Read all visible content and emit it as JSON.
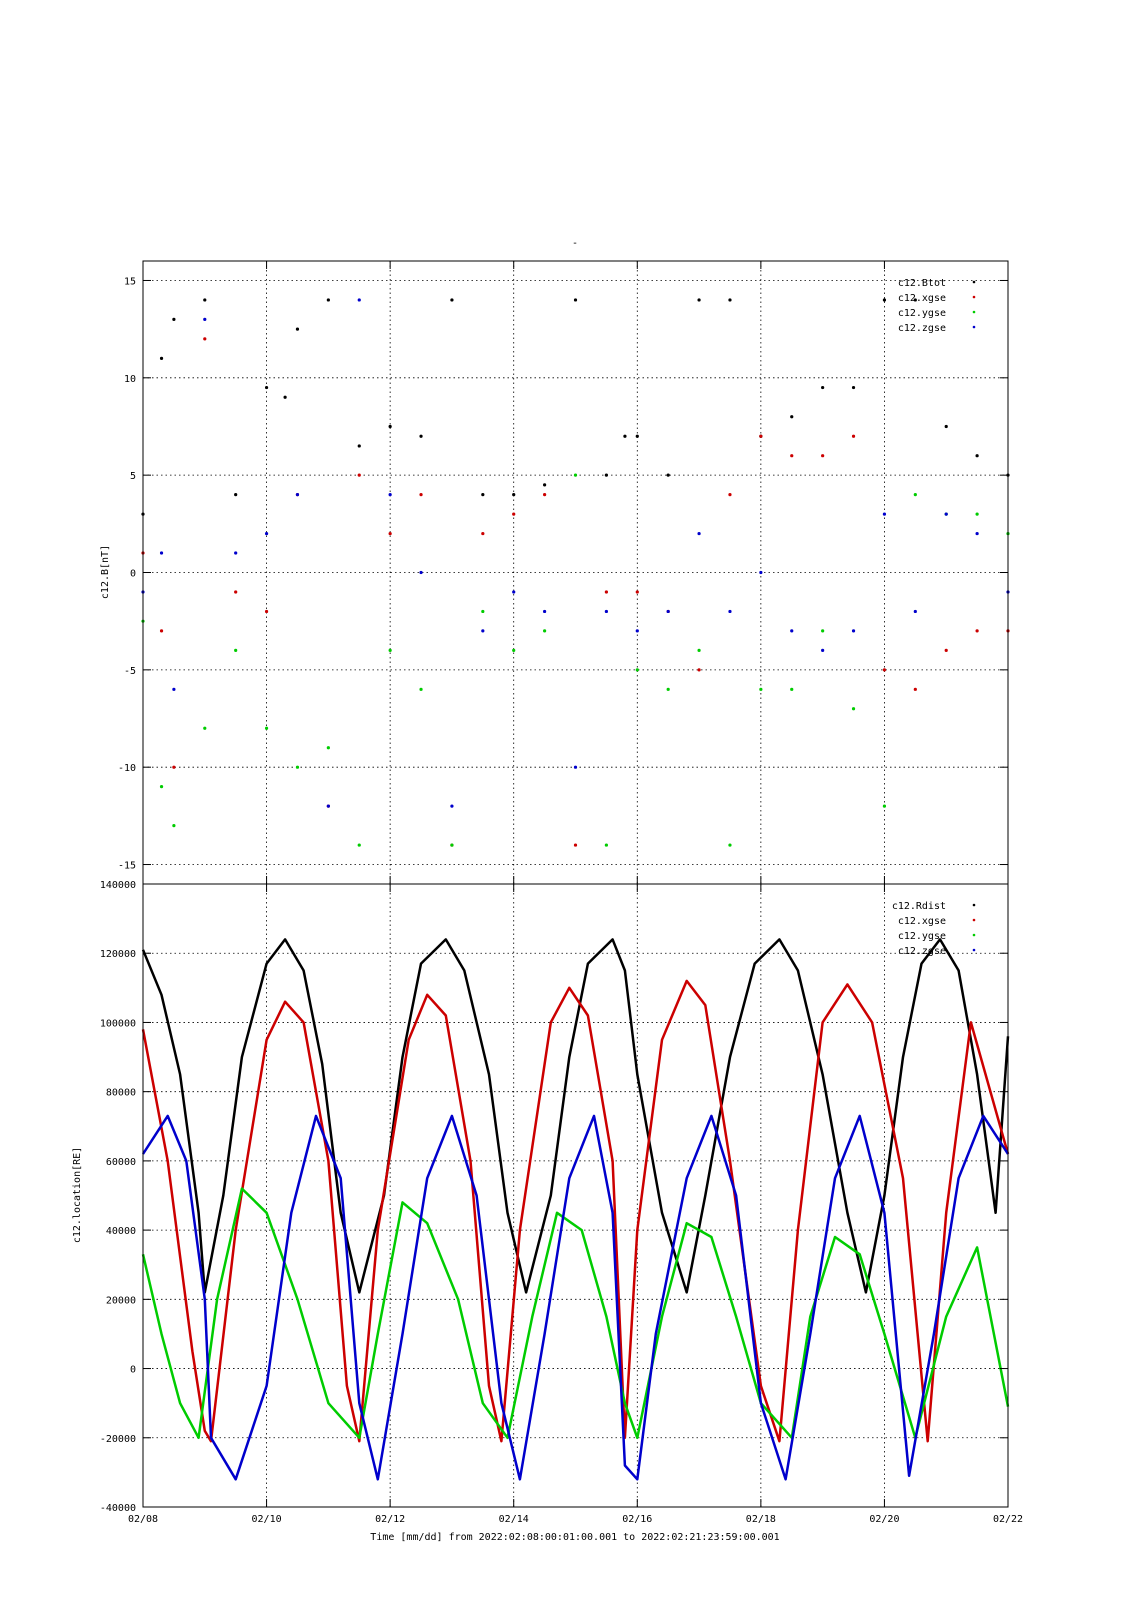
{
  "page_title": "-",
  "xaxis": {
    "label": "Time [mm/dd]  from 2022:02:08:00:01:00.001  to  2022:02:21:23:59:00.001",
    "ticks": [
      "02/08",
      "02/10",
      "02/12",
      "02/14",
      "02/16",
      "02/18",
      "02/20",
      "02/22"
    ],
    "range_days": [
      0,
      14
    ]
  },
  "chart_data": [
    {
      "type": "scatter",
      "ylabel": "c12.B[nT]",
      "ylim": [
        -16,
        16
      ],
      "yticks": [
        -15,
        -10,
        -5,
        0,
        5,
        10,
        15
      ],
      "grid": true,
      "legend_placement": "top-right",
      "series": [
        {
          "name": "c12.Btot",
          "color": "#000000",
          "x": [
            0.0,
            0.3,
            0.5,
            1.0,
            1.5,
            2.0,
            2.3,
            2.5,
            3.0,
            3.5,
            4.0,
            4.5,
            5.0,
            5.5,
            6.0,
            6.5,
            7.0,
            7.5,
            7.8,
            8.0,
            8.5,
            9.0,
            9.5,
            10.0,
            10.5,
            11.0,
            11.5,
            12.0,
            12.5,
            13.0,
            13.5,
            14.0
          ],
          "y": [
            3.0,
            11.0,
            13.0,
            14.0,
            4.0,
            9.5,
            9.0,
            12.5,
            14.0,
            6.5,
            7.5,
            7.0,
            14.0,
            4.0,
            4.0,
            4.5,
            14.0,
            5.0,
            7.0,
            7.0,
            5.0,
            14.0,
            14.0,
            7.0,
            8.0,
            9.5,
            9.5,
            14.0,
            14.0,
            7.5,
            6.0,
            5.0
          ]
        },
        {
          "name": "c12.xgse",
          "color": "#cc0000",
          "x": [
            0.0,
            0.3,
            0.5,
            1.0,
            1.5,
            2.0,
            2.5,
            3.0,
            3.5,
            4.0,
            4.5,
            5.0,
            5.5,
            6.0,
            6.5,
            7.0,
            7.5,
            8.0,
            8.5,
            9.0,
            9.5,
            10.0,
            10.5,
            11.0,
            11.5,
            12.0,
            12.5,
            13.0,
            13.5,
            14.0
          ],
          "y": [
            1.0,
            -3.0,
            -10.0,
            12.0,
            -1.0,
            -2.0,
            4.0,
            -12.0,
            5.0,
            2.0,
            4.0,
            -14.0,
            2.0,
            3.0,
            4.0,
            -14.0,
            -1.0,
            -1.0,
            -2.0,
            -5.0,
            4.0,
            7.0,
            6.0,
            6.0,
            7.0,
            -5.0,
            -6.0,
            -4.0,
            -3.0,
            -3.0
          ]
        },
        {
          "name": "c12.ygse",
          "color": "#00cc00",
          "x": [
            0.0,
            0.3,
            0.5,
            1.0,
            1.5,
            2.0,
            2.5,
            3.0,
            3.5,
            4.0,
            4.5,
            5.0,
            5.5,
            6.0,
            6.5,
            7.0,
            7.5,
            8.0,
            8.5,
            9.0,
            9.5,
            10.0,
            10.5,
            11.0,
            11.5,
            12.0,
            12.5,
            13.0,
            13.5,
            14.0
          ],
          "y": [
            -2.5,
            -11.0,
            -13.0,
            -8.0,
            -4.0,
            -8.0,
            -10.0,
            -9.0,
            -14.0,
            -4.0,
            -6.0,
            -14.0,
            -2.0,
            -4.0,
            -3.0,
            5.0,
            -14.0,
            -5.0,
            -6.0,
            -4.0,
            -14.0,
            -6.0,
            -6.0,
            -3.0,
            -7.0,
            -12.0,
            4.0,
            3.0,
            3.0,
            2.0
          ]
        },
        {
          "name": "c12.zgse",
          "color": "#0000cc",
          "x": [
            0.0,
            0.3,
            0.5,
            1.0,
            1.5,
            2.0,
            2.5,
            3.0,
            3.5,
            4.0,
            4.5,
            5.0,
            5.5,
            6.0,
            6.5,
            7.0,
            7.5,
            8.0,
            8.5,
            9.0,
            9.5,
            10.0,
            10.5,
            11.0,
            11.5,
            12.0,
            12.5,
            13.0,
            13.5,
            14.0
          ],
          "y": [
            -1.0,
            1.0,
            -6.0,
            13.0,
            1.0,
            2.0,
            4.0,
            -12.0,
            14.0,
            4.0,
            0.0,
            -12.0,
            -3.0,
            -1.0,
            -2.0,
            -10.0,
            -2.0,
            -3.0,
            -2.0,
            2.0,
            -2.0,
            0.0,
            -3.0,
            -4.0,
            -3.0,
            3.0,
            -2.0,
            3.0,
            2.0,
            -1.0
          ]
        }
      ]
    },
    {
      "type": "line",
      "ylabel": "c12.location[RE]",
      "ylim": [
        -40000,
        140000
      ],
      "yticks": [
        -40000,
        -20000,
        0,
        20000,
        40000,
        60000,
        80000,
        100000,
        120000,
        140000
      ],
      "grid": true,
      "legend_placement": "top-right",
      "series": [
        {
          "name": "c12.Rdist",
          "color": "#000000",
          "x": [
            0.0,
            0.3,
            0.6,
            0.9,
            1.0,
            1.3,
            1.6,
            2.0,
            2.3,
            2.6,
            2.9,
            3.2,
            3.5,
            3.9,
            4.2,
            4.5,
            4.9,
            5.2,
            5.6,
            5.9,
            6.2,
            6.6,
            6.9,
            7.2,
            7.6,
            7.8,
            8.0,
            8.4,
            8.8,
            9.1,
            9.5,
            9.9,
            10.3,
            10.6,
            11.0,
            11.4,
            11.7,
            12.0,
            12.3,
            12.6,
            12.9,
            13.2,
            13.5,
            13.8,
            14.0
          ],
          "y": [
            121000,
            108000,
            85000,
            45000,
            22000,
            50000,
            90000,
            117000,
            124000,
            115000,
            88000,
            45000,
            22000,
            50000,
            90000,
            117000,
            124000,
            115000,
            85000,
            45000,
            22000,
            50000,
            90000,
            117000,
            124000,
            115000,
            85000,
            45000,
            22000,
            50000,
            90000,
            117000,
            124000,
            115000,
            85000,
            45000,
            22000,
            50000,
            90000,
            117000,
            124000,
            115000,
            85000,
            45000,
            96000
          ]
        },
        {
          "name": "c12.xgse",
          "color": "#cc0000",
          "x": [
            0.0,
            0.4,
            0.8,
            1.0,
            1.1,
            1.5,
            2.0,
            2.3,
            2.6,
            3.0,
            3.3,
            3.5,
            3.8,
            4.3,
            4.6,
            4.9,
            5.3,
            5.6,
            5.8,
            6.1,
            6.6,
            6.9,
            7.2,
            7.6,
            7.8,
            8.0,
            8.4,
            8.8,
            9.1,
            9.5,
            10.0,
            10.3,
            10.6,
            11.0,
            11.4,
            11.8,
            12.3,
            12.7,
            13.0,
            13.4,
            14.0
          ],
          "y": [
            98000,
            60000,
            5000,
            -18000,
            -21000,
            40000,
            95000,
            106000,
            100000,
            60000,
            -5000,
            -21000,
            40000,
            95000,
            108000,
            102000,
            60000,
            -5000,
            -21000,
            40000,
            100000,
            110000,
            102000,
            60000,
            -20000,
            40000,
            95000,
            112000,
            105000,
            60000,
            -5000,
            -21000,
            40000,
            100000,
            111000,
            100000,
            55000,
            -21000,
            45000,
            100000,
            62000
          ]
        },
        {
          "name": "c12.ygse",
          "color": "#00cc00",
          "x": [
            0.0,
            0.3,
            0.6,
            0.9,
            1.2,
            1.6,
            2.0,
            2.5,
            3.0,
            3.5,
            3.8,
            4.2,
            4.6,
            5.1,
            5.5,
            5.9,
            6.3,
            6.7,
            7.1,
            7.5,
            7.8,
            8.0,
            8.4,
            8.8,
            9.2,
            9.6,
            10.0,
            10.5,
            10.8,
            11.2,
            11.6,
            12.0,
            12.5,
            13.0,
            13.5,
            14.0
          ],
          "y": [
            33000,
            10000,
            -10000,
            -20000,
            20000,
            52000,
            45000,
            20000,
            -10000,
            -20000,
            10000,
            48000,
            42000,
            20000,
            -10000,
            -20000,
            15000,
            45000,
            40000,
            15000,
            -10000,
            -20000,
            15000,
            42000,
            38000,
            15000,
            -10000,
            -20000,
            15000,
            38000,
            33000,
            10000,
            -20000,
            15000,
            35000,
            -11000
          ]
        },
        {
          "name": "c12.zgse",
          "color": "#0000cc",
          "x": [
            0.0,
            0.4,
            0.7,
            1.0,
            1.1,
            1.5,
            2.0,
            2.4,
            2.8,
            3.2,
            3.5,
            3.8,
            4.2,
            4.6,
            5.0,
            5.4,
            5.8,
            6.1,
            6.5,
            6.9,
            7.3,
            7.6,
            7.8,
            8.0,
            8.3,
            8.8,
            9.2,
            9.6,
            10.0,
            10.4,
            10.8,
            11.2,
            11.6,
            12.0,
            12.4,
            12.8,
            13.2,
            13.6,
            14.0
          ],
          "y": [
            62000,
            73000,
            60000,
            20000,
            -20000,
            -32000,
            -5000,
            45000,
            73000,
            55000,
            -10000,
            -32000,
            10000,
            55000,
            73000,
            50000,
            -10000,
            -32000,
            10000,
            55000,
            73000,
            45000,
            -28000,
            -32000,
            10000,
            55000,
            73000,
            50000,
            -10000,
            -32000,
            10000,
            55000,
            73000,
            45000,
            -31000,
            10000,
            55000,
            73000,
            62000
          ]
        }
      ]
    }
  ]
}
